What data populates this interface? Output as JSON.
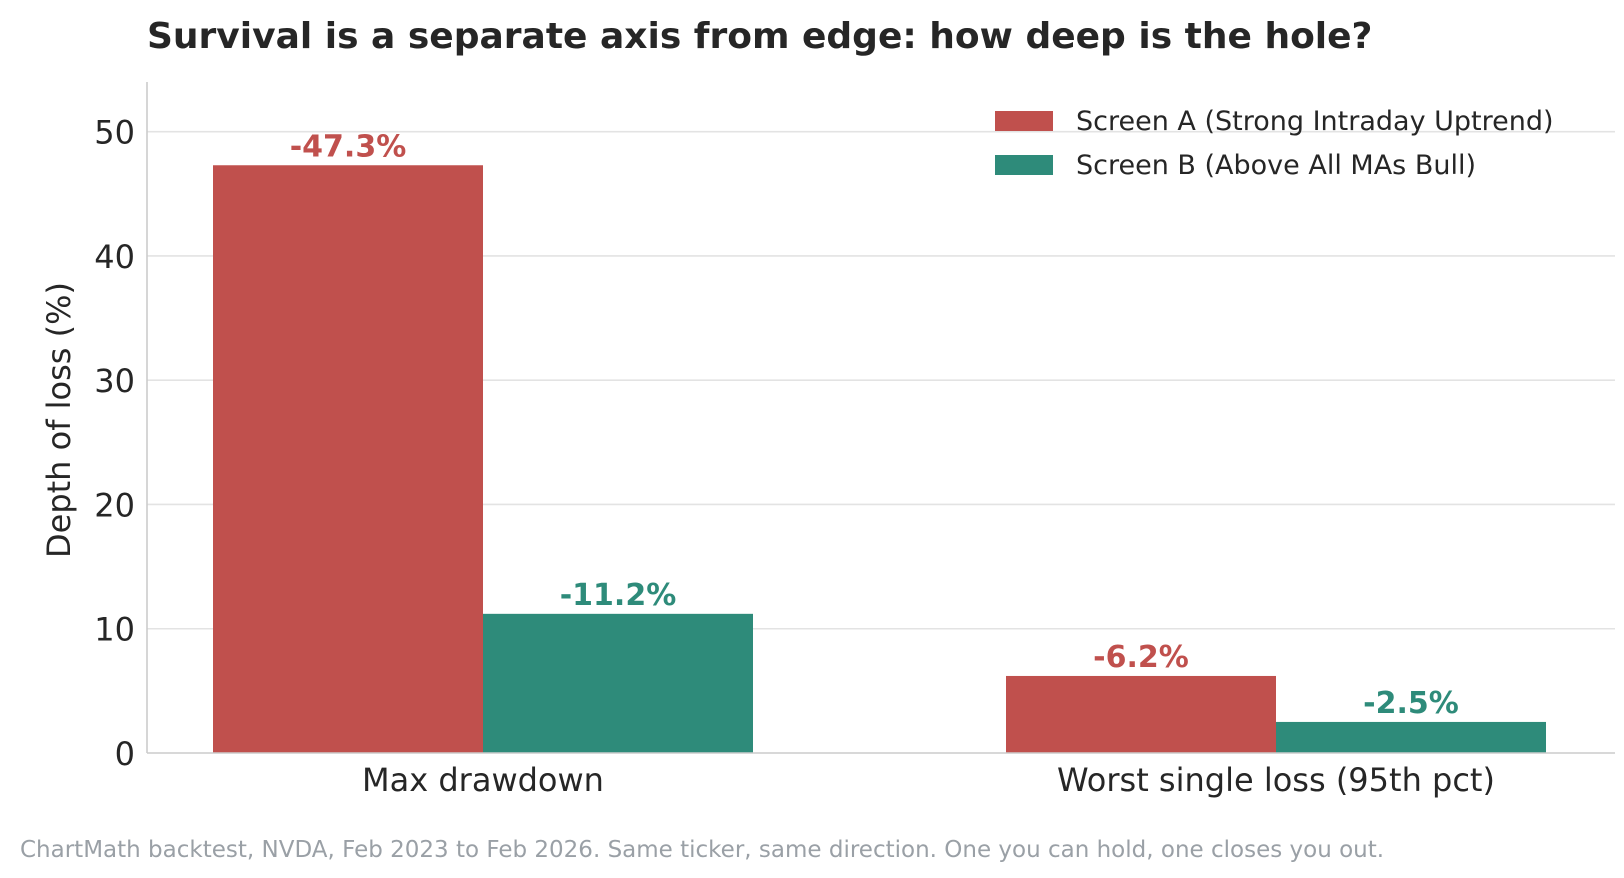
{
  "chart_data": {
    "type": "bar",
    "title": "Survival is a separate axis from edge: how deep is the hole?",
    "xlabel": "",
    "ylabel": "Depth of loss (%)",
    "categories": [
      "Max drawdown",
      "Worst single loss (95th pct)"
    ],
    "ylim": [
      0,
      54
    ],
    "yticks": [
      0,
      10,
      20,
      30,
      40,
      50
    ],
    "grid": true,
    "legend_position": "top-right",
    "series": [
      {
        "name": "Screen A (Strong Intraday Uptrend)",
        "values": [
          47.3,
          6.2
        ],
        "labels": [
          "-47.3%",
          "-6.2%"
        ],
        "color": "#c0504d"
      },
      {
        "name": "Screen B (Above All MAs Bull)",
        "values": [
          11.2,
          2.5
        ],
        "labels": [
          "-11.2%",
          "-2.5%"
        ],
        "color": "#2e8b7a"
      }
    ],
    "footnote": "ChartMath backtest, NVDA, Feb 2023 to Feb 2026. Same ticker, same direction. One you can hold, one closes you out."
  }
}
